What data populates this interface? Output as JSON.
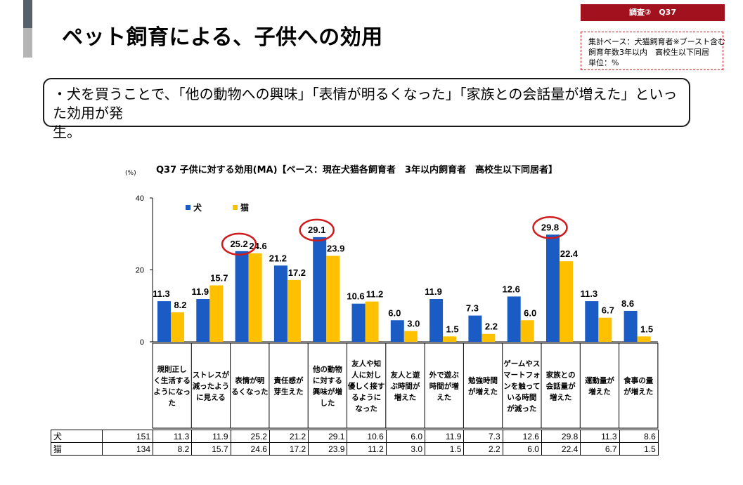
{
  "header": {
    "title": "ペット飼育による、子供への効用",
    "survey_badge": "調査②　Q37",
    "base_lines": [
      "集計ベース：犬猫飼育者※ブースト含む",
      "飼育年数3年以内　高校生以下同居",
      "単位：%"
    ]
  },
  "summary": {
    "line1": "・犬を買うことで、「他の動物への興味」「表情が明るくなった」「家族との会話量が増えた」といった効用が発",
    "line2": "生。"
  },
  "chart_data": {
    "type": "bar",
    "title": "Q37 子供に対する効用(MA)【ベース：現在犬猫各飼育者　3年以内飼育者　高校生以下同居者】",
    "unit_label": "(%)",
    "ylim": [
      0,
      40
    ],
    "yticks": [
      "0",
      "20",
      "40"
    ],
    "categories": [
      "規則正しく生活するようになった",
      "ストレスが減ったように見える",
      "表情が明るくなった",
      "責任感が芽生えた",
      "他の動物に対する興味が増した",
      "友人や知人に対し優しく接するようになった",
      "友人と遊ぶ時間が増えた",
      "外で遊ぶ時間が増えた",
      "勉強時間が増えた",
      "ゲームやスマートフォンを触っている時間が減った",
      "家族との会話量が増えた",
      "運動量が増えた",
      "食事の量が増えた"
    ],
    "category_lines": [
      [
        "規則正し",
        "く生活する",
        "ようになっ",
        "た"
      ],
      [
        "ストレスが",
        "減ったよう",
        "に見える"
      ],
      [
        "表情が明",
        "るくなった"
      ],
      [
        "責任感が",
        "芽生えた"
      ],
      [
        "他の動物",
        "に対する",
        "興味が増",
        "した"
      ],
      [
        "友人や知",
        "人に対し",
        "優しく接す",
        "るように",
        "なった"
      ],
      [
        "友人と遊",
        "ぶ時間が",
        "増えた"
      ],
      [
        "外で遊ぶ",
        "時間が増",
        "えた"
      ],
      [
        "勉強時間",
        "が増えた"
      ],
      [
        "ゲームやス",
        "マートフォ",
        "ンを触って",
        "いる時間",
        "が減った"
      ],
      [
        "家族との",
        "会話量が",
        "増えた"
      ],
      [
        "運動量が",
        "増えた"
      ],
      [
        "食事の量",
        "が増えた"
      ]
    ],
    "series": [
      {
        "name": "犬",
        "n": "151",
        "color": "#1a5bc4",
        "values": [
          11.3,
          11.9,
          25.2,
          21.2,
          29.1,
          10.6,
          6.0,
          11.9,
          7.3,
          12.6,
          29.8,
          11.3,
          8.6
        ]
      },
      {
        "name": "猫",
        "n": "134",
        "color": "#ffc000",
        "values": [
          8.2,
          15.7,
          24.6,
          17.2,
          23.9,
          11.2,
          3.0,
          1.5,
          2.2,
          6.0,
          22.4,
          6.7,
          1.5
        ]
      }
    ],
    "highlighted_dog_categories": [
      2,
      4,
      10
    ],
    "highlight_color": "#d01c1c"
  }
}
